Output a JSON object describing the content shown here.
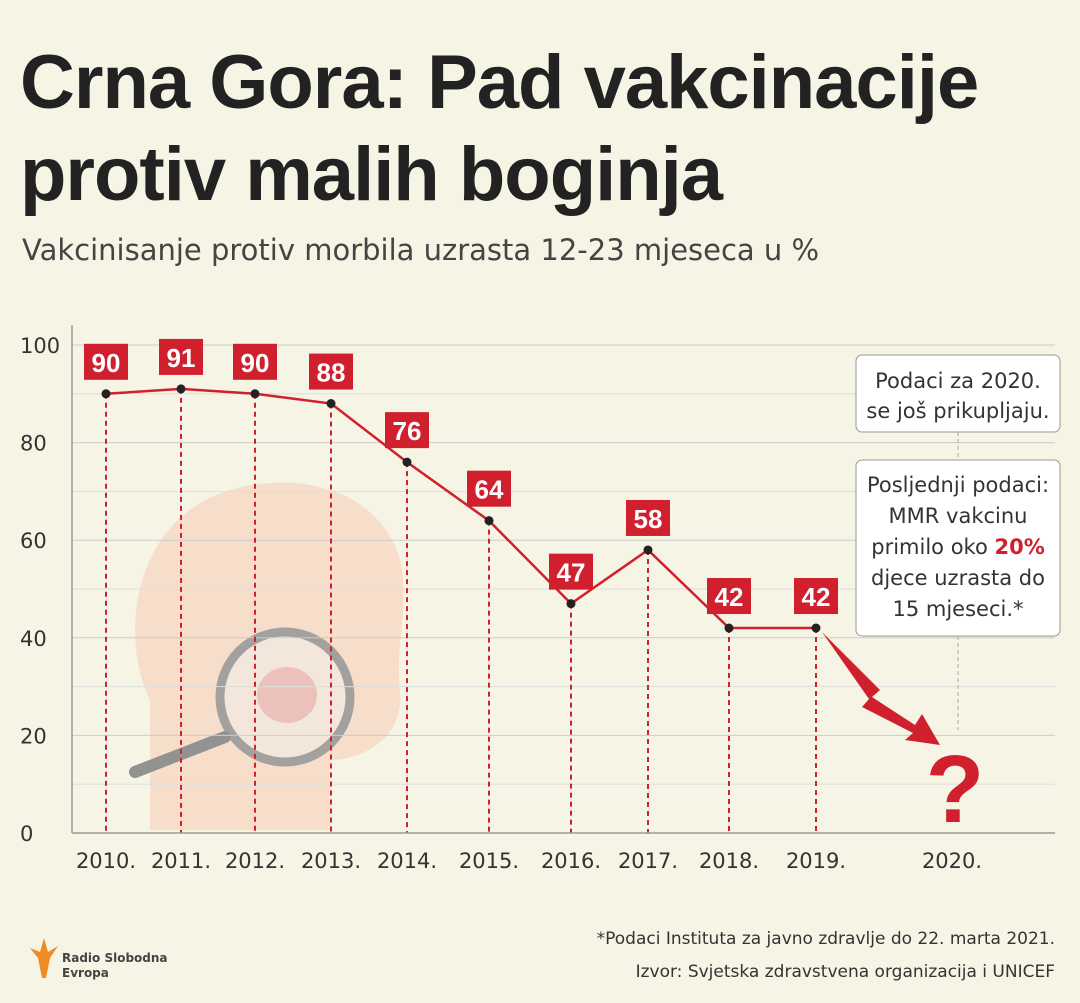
{
  "chart_data": {
    "type": "line",
    "title": [
      "Crna Gora: Pad vakcinacije",
      "protiv malih boginja"
    ],
    "subtitle": "Vakcinisanje protiv morbila uzrasta 12-23 mjeseca u %",
    "categories": [
      "2010.",
      "2011.",
      "2012.",
      "2013.",
      "2014.",
      "2015.",
      "2016.",
      "2017.",
      "2018.",
      "2019.",
      "2020."
    ],
    "series": [
      {
        "name": "Vakcinisanje",
        "color": "#d0202e",
        "values": [
          90,
          91,
          90,
          88,
          76,
          64,
          47,
          58,
          42,
          42,
          null
        ]
      }
    ],
    "ylim": [
      0,
      100
    ],
    "yticks": [
      0,
      20,
      40,
      60,
      80,
      100
    ],
    "yminor": [
      10,
      30,
      50,
      70,
      90
    ],
    "grid": true,
    "annotations": {
      "pending": [
        "Podaci za 2020.",
        "se još prikupljaju."
      ],
      "latest": [
        "Posljednji podaci:",
        "MMR vakcinu",
        "primilo oko ",
        "20%",
        "djece uzrasta do",
        "15 mjeseci.*"
      ],
      "unknown": "?"
    },
    "footnote": "*Podaci Instituta za javno zdravlje do 22. marta 2021.",
    "source": "Izvor: Svjetska zdravstvena organizacija i UNICEF",
    "logo": [
      "Radio Slobodna",
      "Evropa"
    ]
  }
}
